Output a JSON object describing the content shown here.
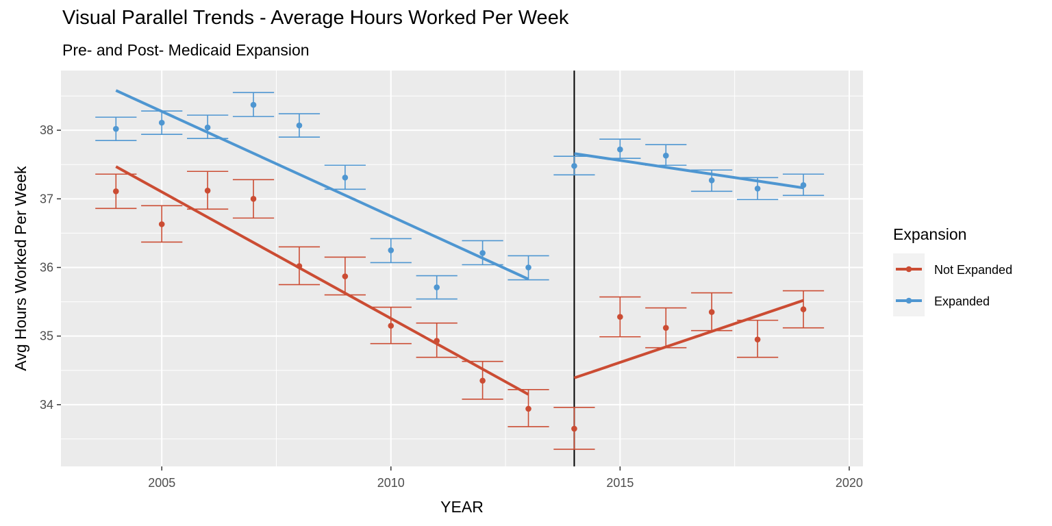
{
  "chart_data": {
    "type": "scatter",
    "title": "Visual Parallel Trends - Average Hours Worked Per Week",
    "subtitle": "Pre- and Post- Medicaid Expansion",
    "xlabel": "YEAR",
    "ylabel": "Avg Hours Worked Per Week",
    "xlim": [
      2002.8,
      2020.3
    ],
    "ylim": [
      33.1,
      38.87
    ],
    "x_ticks": [
      2005,
      2010,
      2015,
      2020
    ],
    "x_tick_labels": [
      "2005",
      "2010",
      "2015",
      "2020"
    ],
    "y_ticks": [
      34,
      35,
      36,
      37,
      38
    ],
    "y_tick_labels": [
      "34",
      "35",
      "36",
      "37",
      "38"
    ],
    "grid": true,
    "background": "#EBEBEB",
    "vline_x": 2014,
    "legend": {
      "title": "Expansion",
      "position": "right",
      "entries": [
        "Not Expanded",
        "Expanded"
      ]
    },
    "series": [
      {
        "name": "Not Expanded",
        "color": "#CB4C33",
        "x": [
          2004,
          2005,
          2006,
          2007,
          2008,
          2009,
          2010,
          2011,
          2012,
          2013,
          2014,
          2015,
          2016,
          2017,
          2018,
          2019
        ],
        "y": [
          37.11,
          36.63,
          37.12,
          37.0,
          36.02,
          35.87,
          35.15,
          34.93,
          34.35,
          33.94,
          33.65,
          35.28,
          35.12,
          35.35,
          34.95,
          35.39
        ],
        "ymin": [
          36.86,
          36.37,
          36.85,
          36.72,
          35.75,
          35.6,
          34.89,
          34.69,
          34.08,
          33.68,
          33.35,
          34.99,
          34.83,
          35.08,
          34.69,
          35.12
        ],
        "ymax": [
          37.36,
          36.9,
          37.4,
          37.28,
          36.3,
          36.15,
          35.42,
          35.19,
          34.63,
          34.22,
          33.96,
          35.57,
          35.41,
          35.63,
          35.23,
          35.66
        ],
        "trend_pre": {
          "x": [
            2004,
            2013
          ],
          "y": [
            37.47,
            34.15
          ]
        },
        "trend_post": {
          "x": [
            2014,
            2019
          ],
          "y": [
            34.39,
            35.52
          ]
        }
      },
      {
        "name": "Expanded",
        "color": "#4E96D1",
        "x": [
          2004,
          2005,
          2006,
          2007,
          2008,
          2009,
          2010,
          2011,
          2012,
          2013,
          2014,
          2015,
          2016,
          2017,
          2018,
          2019
        ],
        "y": [
          38.02,
          38.11,
          38.04,
          38.37,
          38.07,
          37.31,
          36.25,
          35.71,
          36.21,
          36.0,
          37.48,
          37.72,
          37.63,
          37.27,
          37.15,
          37.2
        ],
        "ymin": [
          37.85,
          37.94,
          37.88,
          38.2,
          37.9,
          37.14,
          36.07,
          35.54,
          36.04,
          35.82,
          37.35,
          37.59,
          37.49,
          37.11,
          36.99,
          37.05
        ],
        "ymax": [
          38.19,
          38.28,
          38.22,
          38.55,
          38.24,
          37.49,
          36.42,
          35.88,
          36.39,
          36.17,
          37.62,
          37.87,
          37.79,
          37.42,
          37.31,
          37.36
        ],
        "trend_pre": {
          "x": [
            2004,
            2013
          ],
          "y": [
            38.58,
            35.83
          ]
        },
        "trend_post": {
          "x": [
            2014,
            2019
          ],
          "y": [
            37.66,
            37.16
          ]
        }
      }
    ]
  }
}
